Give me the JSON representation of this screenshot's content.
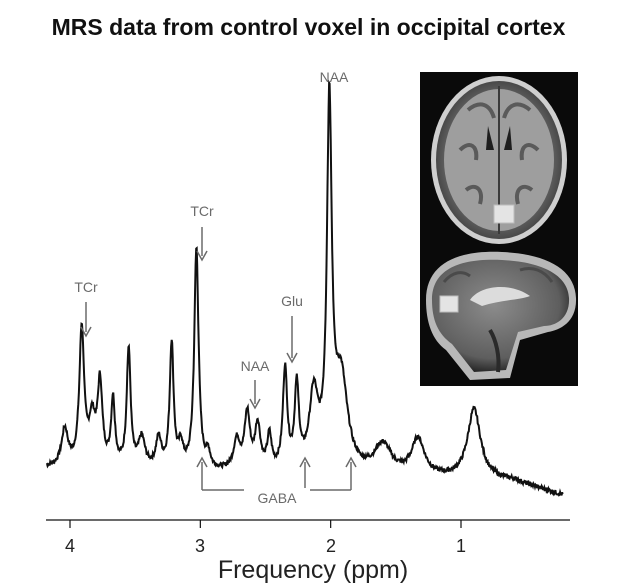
{
  "chart_data": {
    "type": "line",
    "title": "MRS data from control voxel in occipital cortex",
    "xlabel": "Frequency (ppm)",
    "ylabel": "",
    "x_reversed": true,
    "xlim": [
      4.2,
      0.2
    ],
    "ylim": [
      0,
      1
    ],
    "x_ticks": [
      "4",
      "3",
      "2",
      "1"
    ],
    "x_tick_values": [
      4,
      3,
      2,
      1
    ],
    "grid": false,
    "spectrum": {
      "baseline": 0.07,
      "peaks": [
        {
          "ppm": 4.04,
          "amp": 0.1,
          "width": 0.03
        },
        {
          "ppm": 3.91,
          "amp": 0.37,
          "width": 0.022
        },
        {
          "ppm": 3.83,
          "amp": 0.12,
          "width": 0.03
        },
        {
          "ppm": 3.77,
          "amp": 0.22,
          "width": 0.022
        },
        {
          "ppm": 3.67,
          "amp": 0.18,
          "width": 0.018
        },
        {
          "ppm": 3.55,
          "amp": 0.32,
          "width": 0.018
        },
        {
          "ppm": 3.45,
          "amp": 0.08,
          "width": 0.03
        },
        {
          "ppm": 3.32,
          "amp": 0.08,
          "width": 0.025
        },
        {
          "ppm": 3.22,
          "amp": 0.34,
          "width": 0.018
        },
        {
          "ppm": 3.15,
          "amp": 0.06,
          "width": 0.02
        },
        {
          "ppm": 3.03,
          "amp": 0.6,
          "width": 0.02
        },
        {
          "ppm": 2.94,
          "amp": 0.04,
          "width": 0.02
        },
        {
          "ppm": 2.72,
          "amp": 0.08,
          "width": 0.03
        },
        {
          "ppm": 2.64,
          "amp": 0.15,
          "width": 0.025
        },
        {
          "ppm": 2.56,
          "amp": 0.12,
          "width": 0.025
        },
        {
          "ppm": 2.47,
          "amp": 0.09,
          "width": 0.02
        },
        {
          "ppm": 2.35,
          "amp": 0.27,
          "width": 0.02
        },
        {
          "ppm": 2.26,
          "amp": 0.22,
          "width": 0.02
        },
        {
          "ppm": 2.13,
          "amp": 0.2,
          "width": 0.04
        },
        {
          "ppm": 2.01,
          "amp": 0.97,
          "width": 0.022
        },
        {
          "ppm": 1.92,
          "amp": 0.25,
          "width": 0.06
        },
        {
          "ppm": 1.6,
          "amp": 0.08,
          "width": 0.08
        },
        {
          "ppm": 1.33,
          "amp": 0.1,
          "width": 0.06
        },
        {
          "ppm": 0.9,
          "amp": 0.19,
          "width": 0.06
        }
      ]
    },
    "annotations": [
      {
        "label": "TCr",
        "ppm": 3.91
      },
      {
        "label": "TCr",
        "ppm": 3.03
      },
      {
        "label": "NAA",
        "ppm": 2.01
      },
      {
        "label": "NAA",
        "ppm": 2.6
      },
      {
        "label": "Glu",
        "ppm": 2.35
      }
    ],
    "gaba": {
      "label": "GABA",
      "positions": [
        3.0,
        2.26,
        1.9
      ]
    }
  },
  "inset": {
    "description_icon": "mri-brain-icon"
  },
  "colors": {
    "line": "#111111",
    "annotation": "#6a6a6a",
    "inset_bg": "#0a0a0a"
  }
}
